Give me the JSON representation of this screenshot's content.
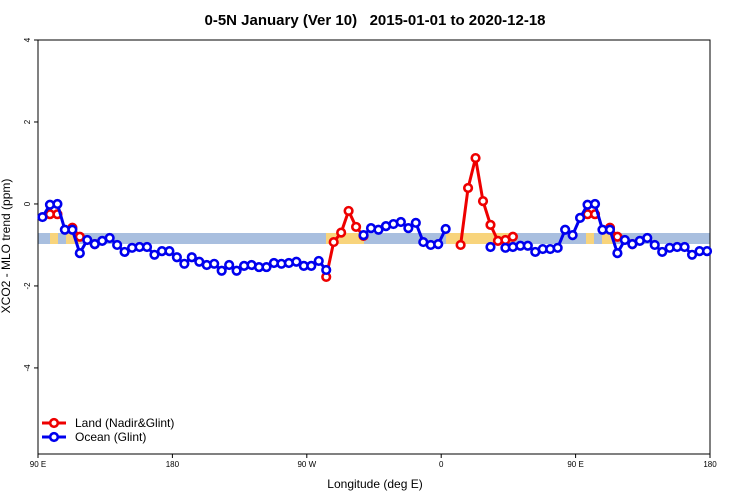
{
  "chart_data": {
    "type": "line",
    "title": "0-5N January (Ver 10)   2015-01-01 to 2020-12-18",
    "x_label": "Longitude (deg E)",
    "y_label": "XCO2 - MLO trend (ppm)",
    "x": [
      93,
      98,
      103,
      108,
      113,
      118,
      123,
      128,
      133,
      138,
      143,
      148,
      153,
      158,
      163,
      168,
      173,
      178,
      183,
      188,
      193,
      198,
      203,
      208,
      213,
      218,
      223,
      228,
      233,
      238,
      243,
      248,
      253,
      258,
      263,
      268,
      273,
      278,
      283,
      288,
      293,
      298,
      303,
      308,
      313,
      318,
      323,
      328,
      333,
      338,
      343,
      348,
      353,
      358,
      363,
      368,
      373,
      378,
      383,
      388,
      393,
      398,
      403,
      408,
      413,
      418,
      423,
      428,
      433,
      438,
      443,
      448,
      453,
      458,
      463,
      468,
      473,
      478,
      483,
      488,
      493,
      498,
      503,
      508,
      513,
      518,
      523,
      528,
      533,
      538
    ],
    "xlim": [
      90,
      540
    ],
    "xticks": [
      {
        "value": 90,
        "label": "90 E"
      },
      180,
      {
        "value": 270,
        "label": "90 W"
      },
      {
        "value": 360,
        "label": "0"
      },
      {
        "value": 450,
        "label": "90 E"
      },
      {
        "value": 540,
        "label": "180"
      }
    ],
    "ylim": [
      -6.1,
      4
    ],
    "yticks": [
      -4,
      -2,
      0,
      2,
      4
    ],
    "legend": "bottom-left",
    "series": [
      {
        "name": "Land (Nadir&Glint)",
        "color": "#ee0000",
        "values": [
          null,
          -0.25,
          -0.25,
          null,
          -0.58,
          -0.8,
          null,
          -0.98,
          null,
          null,
          null,
          null,
          null,
          null,
          null,
          null,
          null,
          null,
          null,
          null,
          null,
          null,
          null,
          null,
          null,
          null,
          null,
          null,
          null,
          null,
          null,
          null,
          null,
          null,
          null,
          null,
          null,
          null,
          -1.78,
          -0.93,
          -0.7,
          -0.17,
          -0.56,
          -0.78,
          null,
          null,
          null,
          null,
          null,
          null,
          null,
          null,
          null,
          null,
          null,
          null,
          -1.0,
          0.39,
          1.12,
          0.07,
          -0.51,
          -0.9,
          -0.88,
          -0.8,
          null,
          null,
          null,
          null,
          null,
          null,
          null,
          null,
          null,
          -0.25,
          -0.25,
          null,
          -0.58,
          -0.8,
          null,
          -0.98,
          null,
          null,
          null,
          null,
          null,
          null,
          null,
          null,
          null,
          null
        ]
      },
      {
        "name": "Ocean (Glint)",
        "color": "#0000ee",
        "values": [
          -0.32,
          -0.02,
          0.0,
          -0.63,
          -0.63,
          -1.2,
          -0.88,
          -0.98,
          -0.9,
          -0.83,
          -1.0,
          -1.17,
          -1.07,
          -1.05,
          -1.05,
          -1.24,
          -1.15,
          -1.15,
          -1.3,
          -1.46,
          -1.3,
          -1.41,
          -1.49,
          -1.46,
          -1.63,
          -1.49,
          -1.63,
          -1.51,
          -1.49,
          -1.54,
          -1.54,
          -1.44,
          -1.46,
          -1.44,
          -1.41,
          -1.51,
          -1.51,
          -1.39,
          -1.61,
          null,
          null,
          null,
          null,
          -0.76,
          -0.59,
          -0.63,
          -0.54,
          -0.49,
          -0.44,
          -0.59,
          -0.46,
          -0.93,
          -1.0,
          -0.98,
          -0.61,
          null,
          null,
          null,
          null,
          null,
          -1.05,
          null,
          -1.07,
          -1.05,
          -1.02,
          -1.02,
          -1.17,
          -1.1,
          -1.1,
          -1.07,
          -0.63,
          -0.76,
          -0.34,
          -0.02,
          0.0,
          -0.63,
          -0.63,
          -1.2,
          -0.88,
          -0.98,
          -0.9,
          -0.83,
          -1.0,
          -1.17,
          -1.07,
          -1.05,
          -1.05,
          -1.24,
          -1.15,
          -1.15
        ]
      }
    ]
  }
}
